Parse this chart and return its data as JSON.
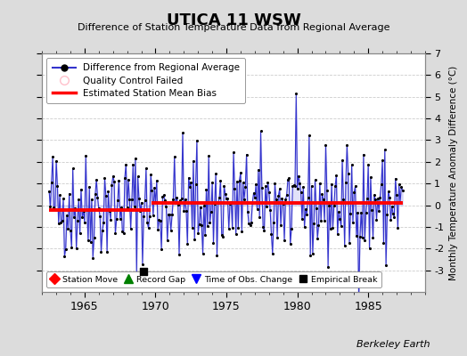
{
  "title": "UTICA 11 WSW",
  "subtitle": "Difference of Station Temperature Data from Regional Average",
  "ylabel": "Monthly Temperature Anomaly Difference (°C)",
  "xlabel_years": [
    1965,
    1970,
    1975,
    1980,
    1985
  ],
  "ylim": [
    -4,
    7
  ],
  "yticks": [
    -3,
    -2,
    -1,
    0,
    1,
    2,
    3,
    4,
    5,
    6,
    7
  ],
  "background_color": "#dcdcdc",
  "plot_background": "#ffffff",
  "line_color": "#3333cc",
  "line_fill_color": "#aaaaee",
  "dot_color": "#000000",
  "bias_color": "#ff0000",
  "bias_value_early": -0.22,
  "bias_value_late": 0.1,
  "bias_break_year": 1969.75,
  "empirical_break_x": 1969.17,
  "empirical_break_y": -3.05,
  "watermark": "Berkeley Earth",
  "seed": 42,
  "n_months": 300,
  "start_year": 1962.5,
  "xlim_start": 1962.0,
  "xlim_end": 1989.0
}
